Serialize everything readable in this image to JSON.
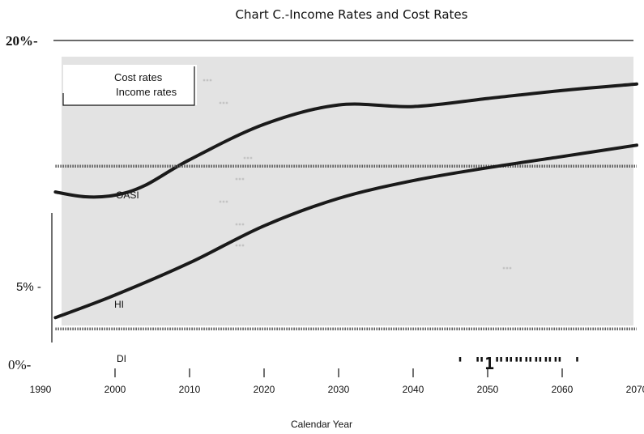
{
  "chart_data": {
    "type": "line",
    "title": "Chart C.-Income Rates and Cost Rates",
    "xlabel": "Calendar Year",
    "ylabel": "",
    "xlim": [
      1990,
      2070
    ],
    "ylim": [
      0,
      20
    ],
    "x_ticks": [
      1990,
      2000,
      2010,
      2020,
      2030,
      2040,
      2050,
      2060,
      2070
    ],
    "y_tick_labels": [
      {
        "value": 20,
        "label": "20%-"
      },
      {
        "value": 5,
        "label": "5% -"
      },
      {
        "value": 0,
        "label": "0%-"
      }
    ],
    "legend": {
      "cost": "Cost rates",
      "income": "Income rates"
    },
    "series": [
      {
        "name": "OASI",
        "line_style": "solid",
        "x": [
          1992,
          1996,
          2000,
          2004,
          2010,
          2020,
          2030,
          2040,
          2050,
          2060,
          2070
        ],
        "values": [
          10.6,
          10.3,
          10.4,
          11.0,
          12.6,
          14.8,
          16.0,
          15.9,
          16.4,
          16.9,
          17.3
        ]
      },
      {
        "name": "",
        "line_style": "hatched",
        "x": [
          1992,
          2070
        ],
        "values": [
          12.2,
          12.2
        ]
      },
      {
        "name": "HI",
        "line_style": "solid",
        "x": [
          1992,
          2000,
          2010,
          2020,
          2030,
          2040,
          2050,
          2060,
          2070
        ],
        "values": [
          2.8,
          4.2,
          6.2,
          8.5,
          10.2,
          11.3,
          12.1,
          12.8,
          13.5
        ]
      },
      {
        "name": "",
        "line_style": "hatched",
        "x": [
          1992,
          2070
        ],
        "values": [
          2.1,
          2.1
        ]
      }
    ],
    "annotations": [
      "DI"
    ],
    "stray_marks": "' \"1\"\"\"\"\"\"\" '"
  }
}
